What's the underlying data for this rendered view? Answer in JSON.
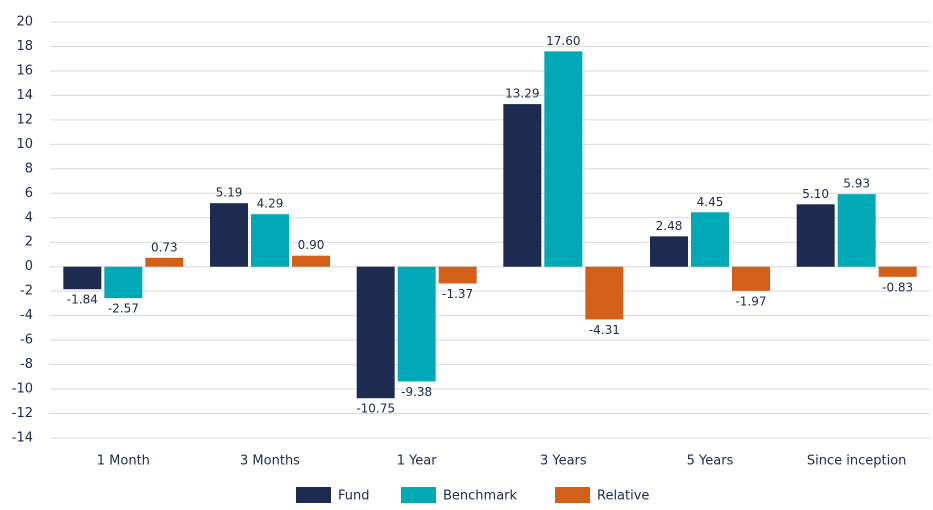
{
  "chart_data": {
    "type": "bar",
    "categories": [
      "1 Month",
      "3 Months",
      "1 Year",
      "3 Years",
      "5 Years",
      "Since inception"
    ],
    "series": [
      {
        "name": "Fund",
        "color": "#1c2b4f",
        "values": [
          -1.84,
          5.19,
          -10.75,
          13.29,
          2.48,
          5.1
        ],
        "value_labels": [
          "-1.84",
          "5.19",
          "-10.75",
          "13.29",
          "2.48",
          "5.10"
        ]
      },
      {
        "name": "Benchmark",
        "color": "#00a9b5",
        "values": [
          -2.57,
          4.29,
          -9.38,
          17.6,
          4.45,
          5.93
        ],
        "value_labels": [
          "-2.57",
          "4.29",
          "-9.38",
          "17.60",
          "4.45",
          "5.93"
        ]
      },
      {
        "name": "Relative",
        "color": "#d2601a",
        "values": [
          0.73,
          0.9,
          -1.37,
          -4.31,
          -1.97,
          -0.83
        ],
        "value_labels": [
          "0.73",
          "0.90",
          "-1.37",
          "-4.31",
          "-1.97",
          "-0.83"
        ]
      }
    ],
    "ylim": [
      -14,
      20
    ],
    "yticks": [
      -14,
      -12,
      -10,
      -8,
      -6,
      -4,
      -2,
      0,
      2,
      4,
      6,
      8,
      10,
      12,
      14,
      16,
      18,
      20
    ],
    "grid": true,
    "legend": "bottom"
  }
}
